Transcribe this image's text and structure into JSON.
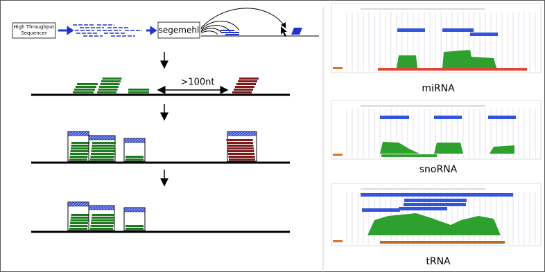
{
  "pipeline": {
    "sequencer": [
      "High Throughput",
      "Sequencer"
    ],
    "mapper": "segemehl"
  },
  "distance_label": ">100nt",
  "panels": [
    {
      "label": "miRNA"
    },
    {
      "label": "snoRNA"
    },
    {
      "label": "tRNA"
    }
  ]
}
